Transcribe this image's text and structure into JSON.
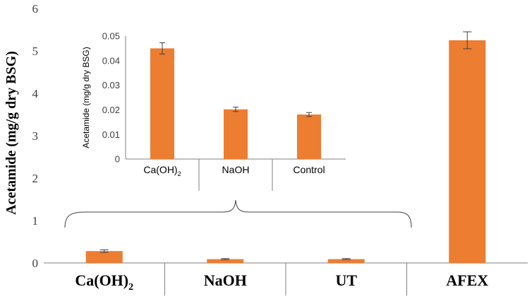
{
  "chart_data": [
    {
      "type": "bar",
      "categories": [
        "Ca(OH)2",
        "NaOH",
        "UT",
        "AFEX"
      ],
      "category_labels": [
        {
          "main": "Ca(OH)",
          "sub": "2"
        },
        {
          "main": "NaOH",
          "sub": ""
        },
        {
          "main": "UT",
          "sub": ""
        },
        {
          "main": "AFEX",
          "sub": ""
        }
      ],
      "values": [
        0.28,
        0.09,
        0.09,
        5.25
      ],
      "errors": [
        0.03,
        0.015,
        0.015,
        0.2
      ],
      "ylabel": "Acetamide (mg/g dry BSG)",
      "ylim": [
        0,
        6
      ],
      "yticks": [
        "0",
        "1",
        "2",
        "3",
        "4",
        "5",
        "6"
      ],
      "bar_color": "#ED7D31",
      "grid": false
    },
    {
      "type": "bar",
      "categories": [
        "Ca(OH)2",
        "NaOH",
        "Control"
      ],
      "category_labels": [
        {
          "main": "Ca(OH)",
          "sub": "2"
        },
        {
          "main": "NaOH",
          "sub": ""
        },
        {
          "main": "Control",
          "sub": ""
        }
      ],
      "values": [
        0.045,
        0.0202,
        0.0181
      ],
      "errors": [
        0.0023,
        0.0009,
        0.0008
      ],
      "ylabel": "Acetamide (mg/g dry BSG)",
      "ylim": [
        0,
        0.05
      ],
      "yticks": [
        "0",
        "0.01",
        "0.02",
        "0.03",
        "0.04",
        "0.05"
      ],
      "bar_color": "#ED7D31",
      "grid": false
    }
  ]
}
